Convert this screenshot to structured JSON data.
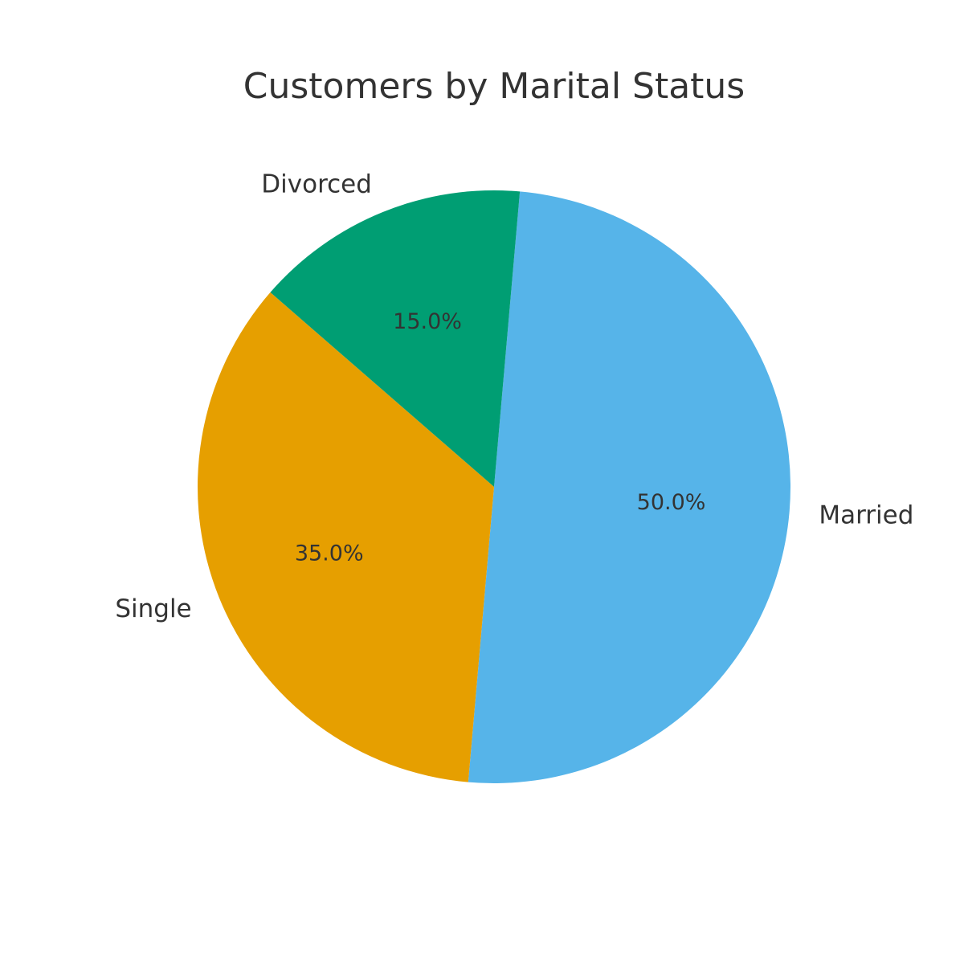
{
  "chart_data": {
    "type": "pie",
    "title": "Customers by Marital Status",
    "categories": [
      "Married",
      "Single",
      "Divorced"
    ],
    "values": [
      50.0,
      35.0,
      15.0
    ],
    "labels": [
      "50.0%",
      "35.0%",
      "15.0%"
    ],
    "colors": [
      "#56B4E9",
      "#E69F00",
      "#009E73"
    ],
    "start_angle_deg": 85,
    "direction": "clockwise",
    "legend": "none"
  }
}
